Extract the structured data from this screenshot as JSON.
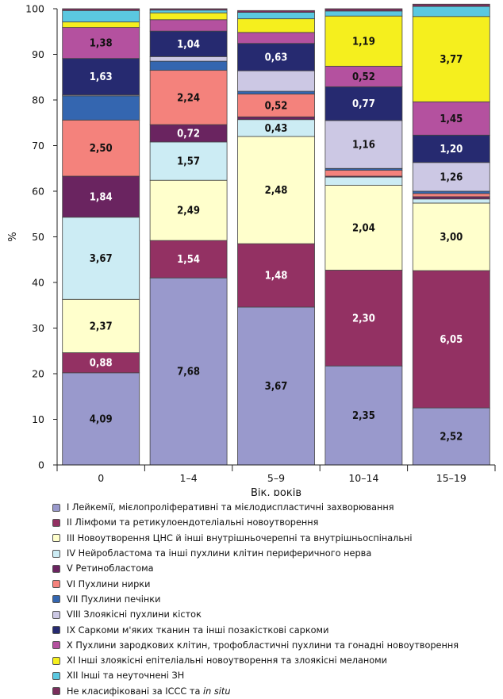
{
  "chart_data": {
    "type": "bar",
    "stacked": true,
    "percent": true,
    "categories": [
      "0",
      "1–4",
      "5–9",
      "10–14",
      "15–19"
    ],
    "xlabel": "Вік, років",
    "ylabel": "%",
    "ylim": [
      0,
      100
    ],
    "yticks": [
      0,
      10,
      20,
      30,
      40,
      50,
      60,
      70,
      80,
      90,
      100
    ],
    "grid": false,
    "legend_position": "bottom",
    "series": [
      {
        "name": "I Лейкемії, мієлопроліферативні та мієлодиспластичні захворювання",
        "color": "#9999cc",
        "label_color": "#111111",
        "values": [
          20.2,
          41.0,
          34.6,
          21.7,
          12.5
        ],
        "labels": [
          "4,09",
          "7,68",
          "3,67",
          "2,35",
          "2,52"
        ]
      },
      {
        "name": "II Лімфоми та ретикулоендотеліальні новоутворення",
        "color": "#933163",
        "label_color": "#ffffff",
        "values": [
          4.4,
          8.2,
          13.9,
          21.0,
          30.1
        ],
        "labels": [
          "0,88",
          "1,54",
          "1,48",
          "2,30",
          "6,05"
        ]
      },
      {
        "name": "III Новоутворення ЦНС й інші внутрішньочерепні та внутрішньоспінальні",
        "color": "#ffffcc",
        "label_color": "#111111",
        "values": [
          11.7,
          13.2,
          23.5,
          18.6,
          14.8
        ],
        "labels": [
          "2,37",
          "2,49",
          "2,48",
          "2,04",
          "3,00"
        ]
      },
      {
        "name": "IV Нейробластома та інші пухлини клітин периферичного нерва",
        "color": "#ccecf4",
        "label_color": "#111111",
        "values": [
          18.0,
          8.4,
          3.7,
          1.8,
          0.9
        ],
        "labels": [
          "3,67",
          "1,57",
          "0,43",
          "",
          ""
        ]
      },
      {
        "name": "V Ретинобластома",
        "color": "#6a2460",
        "label_color": "#ffffff",
        "values": [
          9.0,
          3.8,
          0.6,
          0.2,
          0.5
        ],
        "labels": [
          "1,84",
          "0,72",
          "",
          "",
          ""
        ]
      },
      {
        "name": "VI Пухлини нирки",
        "color": "#f4827c",
        "label_color": "#111111",
        "values": [
          12.3,
          11.9,
          5.0,
          1.3,
          0.7
        ],
        "labels": [
          "2,50",
          "2,24",
          "0,52",
          "",
          ""
        ]
      },
      {
        "name": "VII Пухлини печінки",
        "color": "#3466b0",
        "label_color": "#ffffff",
        "values": [
          5.3,
          2.0,
          0.6,
          0.4,
          0.5
        ],
        "labels": [
          "",
          "",
          "",
          "",
          ""
        ]
      },
      {
        "name": "VIII Злоякісні пухлини кісток",
        "color": "#ccc8e4",
        "label_color": "#111111",
        "values": [
          0.2,
          1.0,
          4.5,
          10.5,
          6.3
        ],
        "labels": [
          "",
          "",
          "",
          "1,16",
          "1,26"
        ]
      },
      {
        "name": "IX Саркоми м'яких тканин та інші позакісткові саркоми",
        "color": "#262a70",
        "label_color": "#ffffff",
        "values": [
          8.0,
          5.6,
          6.0,
          7.4,
          6.0
        ],
        "labels": [
          "1,63",
          "1,04",
          "0,63",
          "0,77",
          "1,20"
        ]
      },
      {
        "name": "X Пухлини зародкових клітин, трофобластичні пухлини та гонадні новоутворення",
        "color": "#b4519f",
        "label_color": "#111111",
        "values": [
          6.8,
          2.5,
          2.4,
          4.5,
          7.3
        ],
        "labels": [
          "1,38",
          "",
          "",
          "0,52",
          "1,45"
        ]
      },
      {
        "name": "XI Інші злоякісні епітеліальні новоутворення та злоякісні меланоми",
        "color": "#f5ef1e",
        "label_color": "#111111",
        "values": [
          1.2,
          1.5,
          3.0,
          11.0,
          18.7
        ],
        "labels": [
          "",
          "",
          "",
          "1,19",
          "3,77"
        ]
      },
      {
        "name": "XII Інші та неуточнені ЗН",
        "color": "#5bc8e0",
        "label_color": "#111111",
        "values": [
          2.5,
          0.6,
          1.4,
          1.1,
          2.2
        ],
        "labels": [
          "",
          "",
          "",
          "",
          ""
        ]
      },
      {
        "name": "Не класифіковані за ICCC та in situ",
        "name_main": "Не класифіковані за ICCC та ",
        "name_italic": "in situ",
        "color": "#7a2e5c",
        "label_color": "#ffffff",
        "values": [
          0.4,
          0.3,
          0.4,
          0.5,
          0.5
        ],
        "labels": [
          "",
          "",
          "",
          "",
          ""
        ]
      }
    ]
  }
}
